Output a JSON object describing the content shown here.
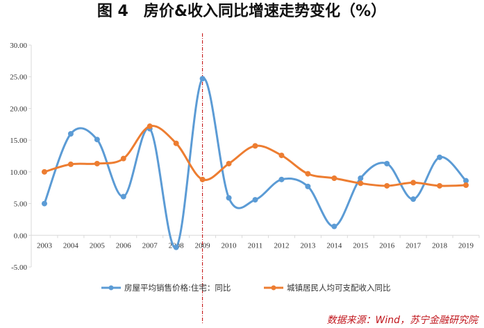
{
  "chart_data": {
    "type": "line",
    "title": "图 4　房价&收入同比增速走势变化（%）",
    "x": [
      "2003",
      "2004",
      "2005",
      "2006",
      "2007",
      "2008",
      "2009",
      "2010",
      "2011",
      "2012",
      "2013",
      "2014",
      "2015",
      "2016",
      "2017",
      "2018",
      "2019"
    ],
    "ylim": [
      -5,
      30
    ],
    "yticks": [
      "-5.00",
      "0.00",
      "5.00",
      "10.00",
      "15.00",
      "20.00",
      "25.00",
      "30.00"
    ],
    "grid": false,
    "legend_position": "bottom",
    "reference_line_x": "2009",
    "series": [
      {
        "name": "房屋平均销售价格:住宅：同比",
        "color": "#5b9bd5",
        "values": [
          5.0,
          16.0,
          15.1,
          6.1,
          16.8,
          -1.9,
          24.7,
          5.9,
          5.6,
          8.8,
          7.7,
          1.4,
          9.0,
          11.3,
          5.7,
          12.3,
          8.6
        ]
      },
      {
        "name": "城镇居民人均可支配收入同比",
        "color": "#ed7d31",
        "values": [
          10.0,
          11.2,
          11.3,
          12.1,
          17.2,
          14.5,
          8.8,
          11.3,
          14.1,
          12.6,
          9.7,
          9.0,
          8.2,
          7.8,
          8.3,
          7.8,
          7.9
        ]
      }
    ]
  },
  "source": "数据来源：Wind，苏宁金融研究院",
  "colors": {
    "axis": "#d9d9d9",
    "reference_line": "#c00000",
    "source_text": "#c0161c"
  }
}
